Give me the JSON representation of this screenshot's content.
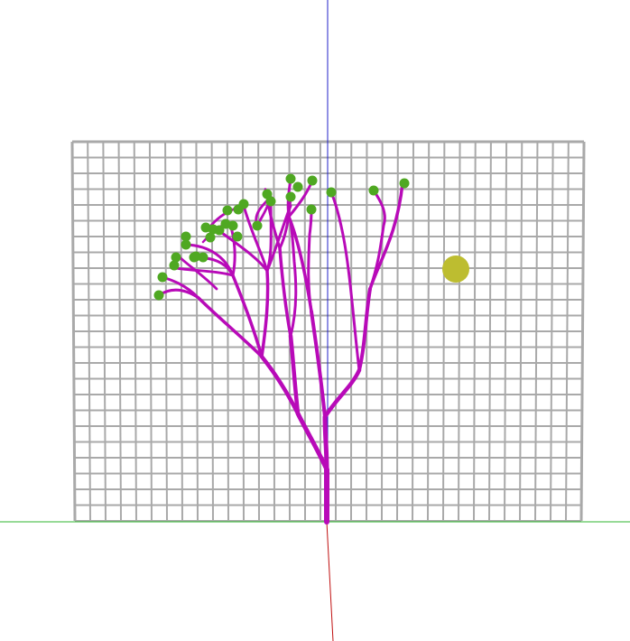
{
  "scene": {
    "kind": "3d-viewport",
    "colors": {
      "background": "#ffffff",
      "grid": "#a9a9a9",
      "axis_x": "#2fb52f",
      "axis_y": "#2020c8",
      "axis_z": "#c01010",
      "branch": "#b80ab8",
      "leaf": "#4fa822",
      "light": "#bdbd30"
    },
    "grid": {
      "columns": 33,
      "rows": 24
    },
    "tree": {
      "tip_count": 30
    }
  }
}
